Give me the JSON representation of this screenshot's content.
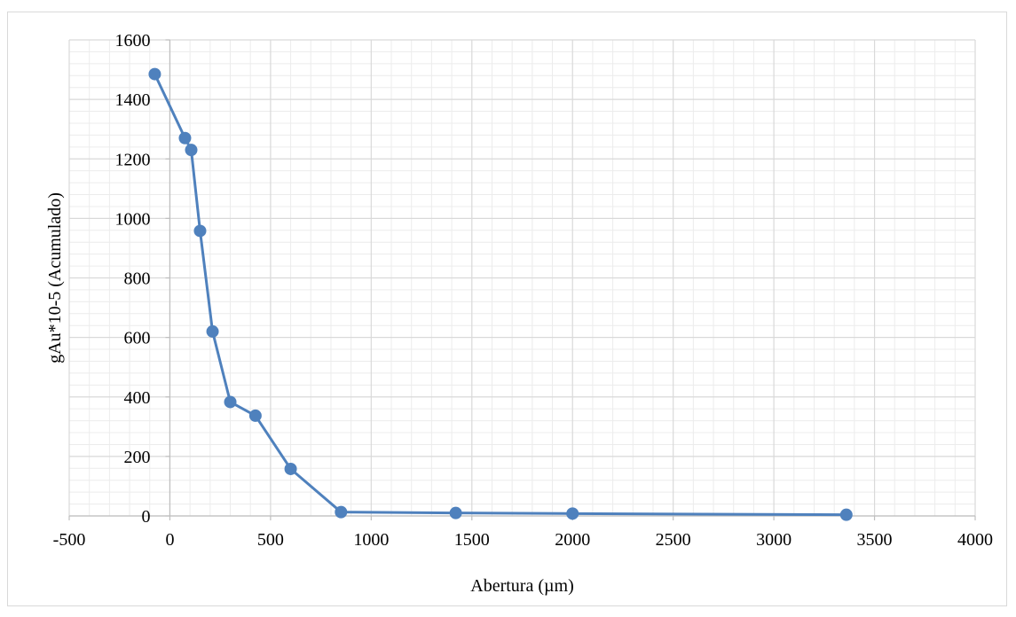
{
  "chart_data": {
    "type": "scatter",
    "title": "",
    "xlabel": "Abertura (µm)",
    "ylabel": "gAu*10-5 (Acumulado)",
    "xlim": [
      -500,
      4000
    ],
    "ylim": [
      0,
      1600
    ],
    "x_major_step": 500,
    "y_major_step": 200,
    "x_ticks": [
      "-500",
      "0",
      "500",
      "1000",
      "1500",
      "2000",
      "2500",
      "3000",
      "3500",
      "4000"
    ],
    "y_ticks": [
      "0",
      "200",
      "400",
      "600",
      "800",
      "1000",
      "1200",
      "1400",
      "1600"
    ],
    "grid": true,
    "minor_grid": true,
    "legend": "none",
    "series": [
      {
        "color": "#4f81bd",
        "style": "line-with-markers",
        "points": [
          {
            "x": -75,
            "y": 1485
          },
          {
            "x": 75,
            "y": 1270
          },
          {
            "x": 106,
            "y": 1230
          },
          {
            "x": 150,
            "y": 958
          },
          {
            "x": 212,
            "y": 620
          },
          {
            "x": 300,
            "y": 383
          },
          {
            "x": 425,
            "y": 337
          },
          {
            "x": 600,
            "y": 158
          },
          {
            "x": 850,
            "y": 13
          },
          {
            "x": 1420,
            "y": 10
          },
          {
            "x": 2000,
            "y": 8
          },
          {
            "x": 3360,
            "y": 4
          }
        ]
      }
    ]
  }
}
